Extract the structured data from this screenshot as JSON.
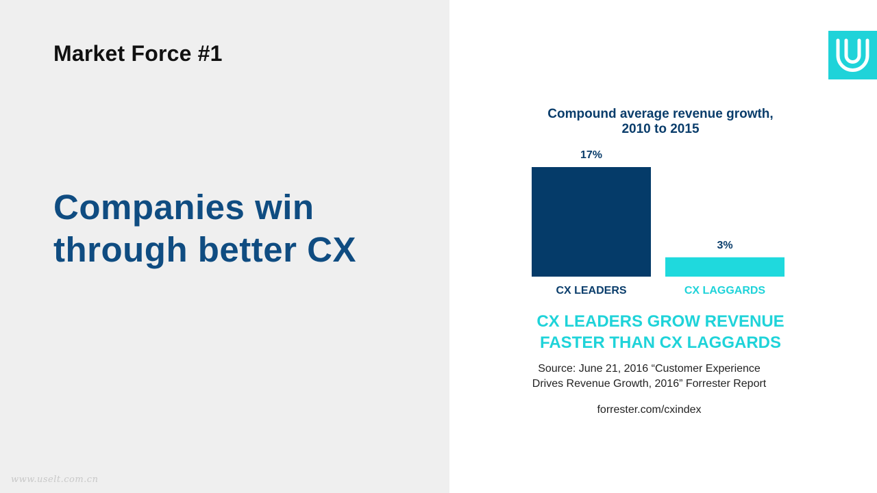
{
  "slide": {
    "kicker": "Market Force #1",
    "headline_line1": "Companies win",
    "headline_line2": "through better CX",
    "watermark": "www.uselt.com.cn"
  },
  "logo": {
    "icon": "u-logo-icon",
    "color": "#1fd3d9"
  },
  "chart_data": {
    "type": "bar",
    "title_line1": "Compound average revenue growth,",
    "title_line2": "2010 to 2015",
    "categories": [
      "CX LEADERS",
      "CX LAGGARDS"
    ],
    "values": [
      17,
      3
    ],
    "value_labels": [
      "17%",
      "3%"
    ],
    "colors": [
      "#053b69",
      "#1fd9dd"
    ],
    "label_colors": [
      "#0a3d6b",
      "#1fd3d9"
    ],
    "ylim": [
      0,
      17
    ],
    "grid": false,
    "legend": "none"
  },
  "tagline": {
    "line1": "CX LEADERS GROW REVENUE",
    "line2": "FASTER THAN CX LAGGARDS"
  },
  "source": {
    "line1": "Source: June 21, 2016 “Customer Experience",
    "line2": "Drives Revenue Growth, 2016” Forrester Report",
    "link": "forrester.com/cxindex"
  }
}
